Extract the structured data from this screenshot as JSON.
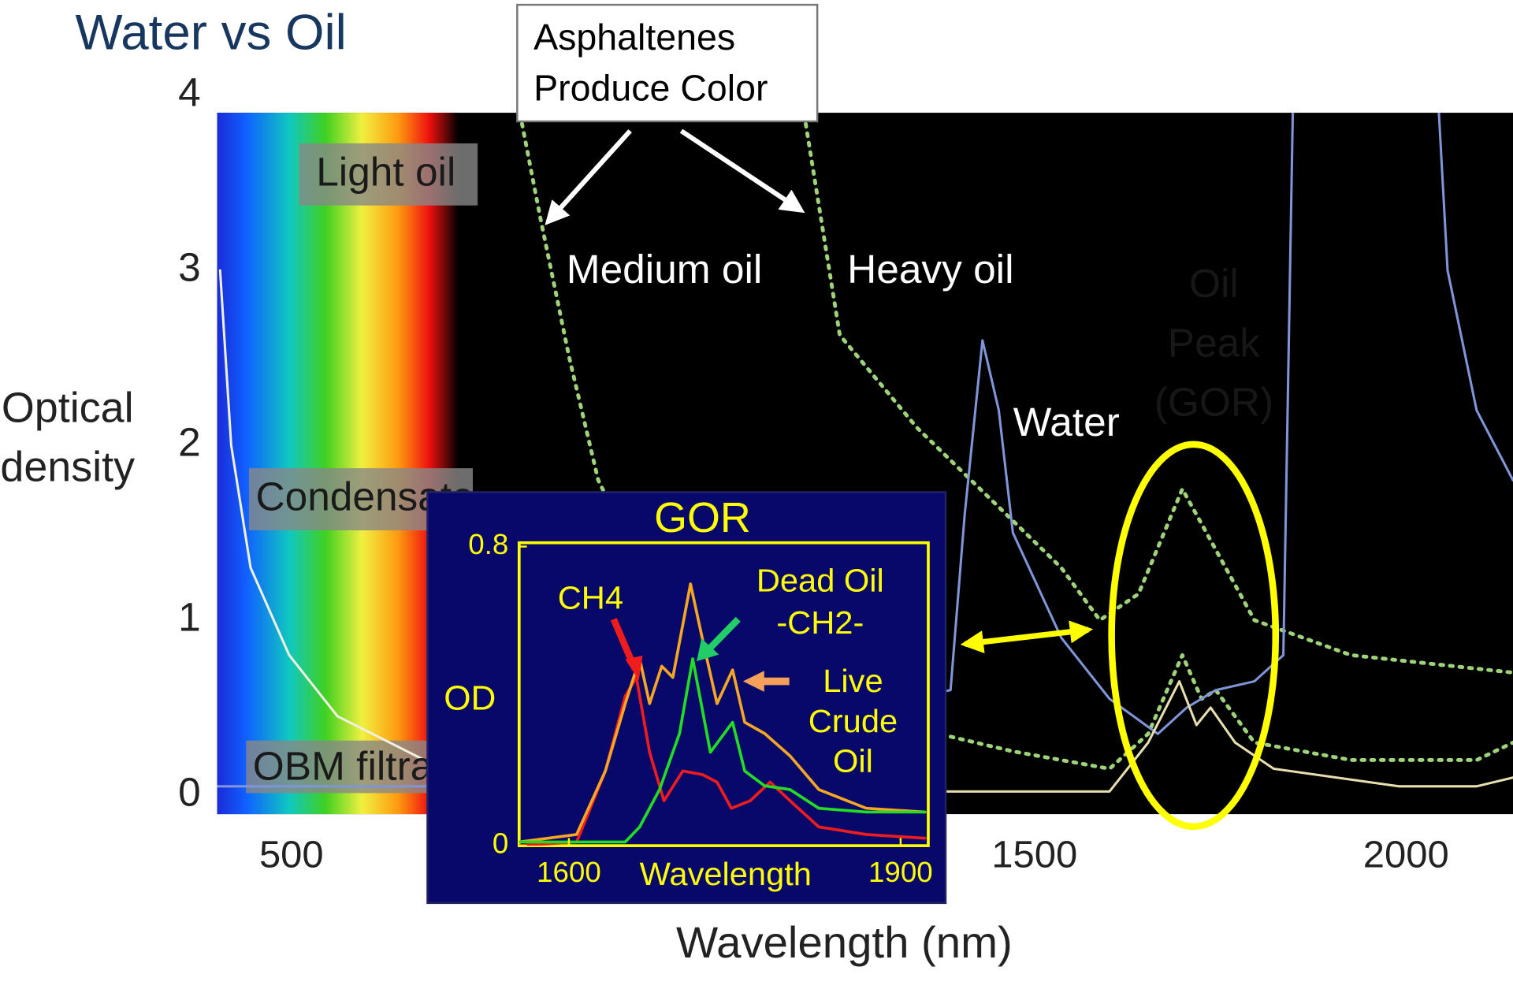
{
  "title": "Water vs Oil",
  "callout": [
    "Asphaltenes",
    "Produce Color"
  ],
  "chart_data": [
    {
      "type": "line",
      "x_label": "Wavelength (nm)",
      "y_label": [
        "Optical",
        "density"
      ],
      "xlim": [
        400,
        2144
      ],
      "ylim": [
        0,
        4
      ],
      "xticks": [
        500,
        1500,
        2000
      ],
      "yticks": [
        0,
        1,
        2,
        3,
        4
      ],
      "annotations": [
        "Light oil",
        "Condensate",
        "OBM filtrate",
        "Medium oil",
        "Heavy oil",
        "Water",
        [
          "Oil",
          "Peak",
          "(GOR)"
        ]
      ],
      "series": [
        {
          "color": "#9fd37a",
          "style": "dashed",
          "x": [
            1186,
            1238,
            1342,
            1536,
            1588,
            1640,
            1699,
            1725,
            1796,
            1926,
            2144
          ],
          "values": [
            4,
            2.63,
            2.1,
            1.3,
            1.0,
            1.15,
            1.75,
            1.55,
            1.0,
            0.8,
            0.7
          ]
        },
        {
          "color": "#9fd37a",
          "style": "dashed",
          "x": [
            803,
            835,
            874,
            913,
            1017,
            1212,
            1381,
            1471,
            1601,
            1653,
            1699,
            1725,
            1744,
            1796,
            1926,
            2095,
            2144
          ],
          "values": [
            4,
            3.3,
            2.5,
            1.8,
            0.9,
            0.5,
            0.34,
            0.25,
            0.15,
            0.35,
            0.8,
            0.55,
            0.6,
            0.3,
            0.2,
            0.2,
            0.3
          ]
        },
        {
          "color": "#7f95d8",
          "style": "solid",
          "x": [
            400,
            679,
            1387,
            1406,
            1430,
            1452,
            1471,
            1536,
            1601,
            1666,
            1705,
            1744,
            1796,
            1835,
            1848,
            1950,
            2043,
            2056,
            2095,
            2144
          ],
          "values": [
            0.05,
            0.05,
            0.6,
            1.6,
            2.6,
            2.2,
            1.5,
            0.9,
            0.55,
            0.35,
            0.5,
            0.6,
            0.65,
            0.8,
            4,
            null,
            4,
            3.0,
            2.2,
            1.8
          ]
        },
        {
          "color": "#f0f0e0",
          "style": "solid",
          "x": [
            404,
            419,
            445,
            497,
            562,
            679
          ],
          "values": [
            3.0,
            2.0,
            1.3,
            0.8,
            0.45,
            0.2
          ]
        },
        {
          "color": "#e8dfb0",
          "style": "solid",
          "x": [
            1381,
            1601,
            1653,
            1695,
            1718,
            1737,
            1770,
            1822,
            1991,
            2095,
            2144
          ],
          "values": [
            0.02,
            0.02,
            0.3,
            0.65,
            0.4,
            0.5,
            0.3,
            0.15,
            0.05,
            0.05,
            0.1
          ]
        }
      ]
    },
    {
      "type": "line",
      "title": "GOR",
      "x_label": "Wavelength",
      "y_label": "OD",
      "xlim": [
        1555,
        1925
      ],
      "ylim": [
        0,
        0.8
      ],
      "xticks": [
        1600,
        1900
      ],
      "yticks": [
        0,
        0.8
      ],
      "annotations": [
        "CH4",
        [
          "Dead Oil",
          "-CH2-"
        ],
        [
          "Live",
          "Crude",
          "Oil"
        ]
      ],
      "series": [
        {
          "color": "#ee1c1c",
          "x": [
            1555,
            1607,
            1633,
            1651,
            1661,
            1673,
            1686,
            1703,
            1721,
            1734,
            1747,
            1764,
            1782,
            1800,
            1826,
            1869,
            1922
          ],
          "values": [
            0,
            0.01,
            0.2,
            0.4,
            0.45,
            0.25,
            0.12,
            0.2,
            0.19,
            0.17,
            0.1,
            0.12,
            0.17,
            0.12,
            0.05,
            0.03,
            0.02
          ]
        },
        {
          "color": "#f5a623",
          "x": [
            1555,
            1607,
            1633,
            1651,
            1664,
            1673,
            1684,
            1694,
            1710,
            1721,
            1734,
            1748,
            1759,
            1777,
            1800,
            1826,
            1869,
            1922
          ],
          "values": [
            0.01,
            0.03,
            0.2,
            0.38,
            0.5,
            0.38,
            0.48,
            0.45,
            0.7,
            0.55,
            0.38,
            0.47,
            0.33,
            0.3,
            0.24,
            0.15,
            0.1,
            0.09
          ]
        },
        {
          "color": "#22dd22",
          "x": [
            1555,
            1651,
            1664,
            1682,
            1700,
            1712,
            1728,
            1748,
            1759,
            1777,
            1800,
            1826,
            1869,
            1922
          ],
          "values": [
            0.01,
            0.01,
            0.05,
            0.15,
            0.3,
            0.5,
            0.25,
            0.33,
            0.2,
            0.16,
            0.15,
            0.1,
            0.09,
            0.09
          ]
        }
      ]
    }
  ]
}
